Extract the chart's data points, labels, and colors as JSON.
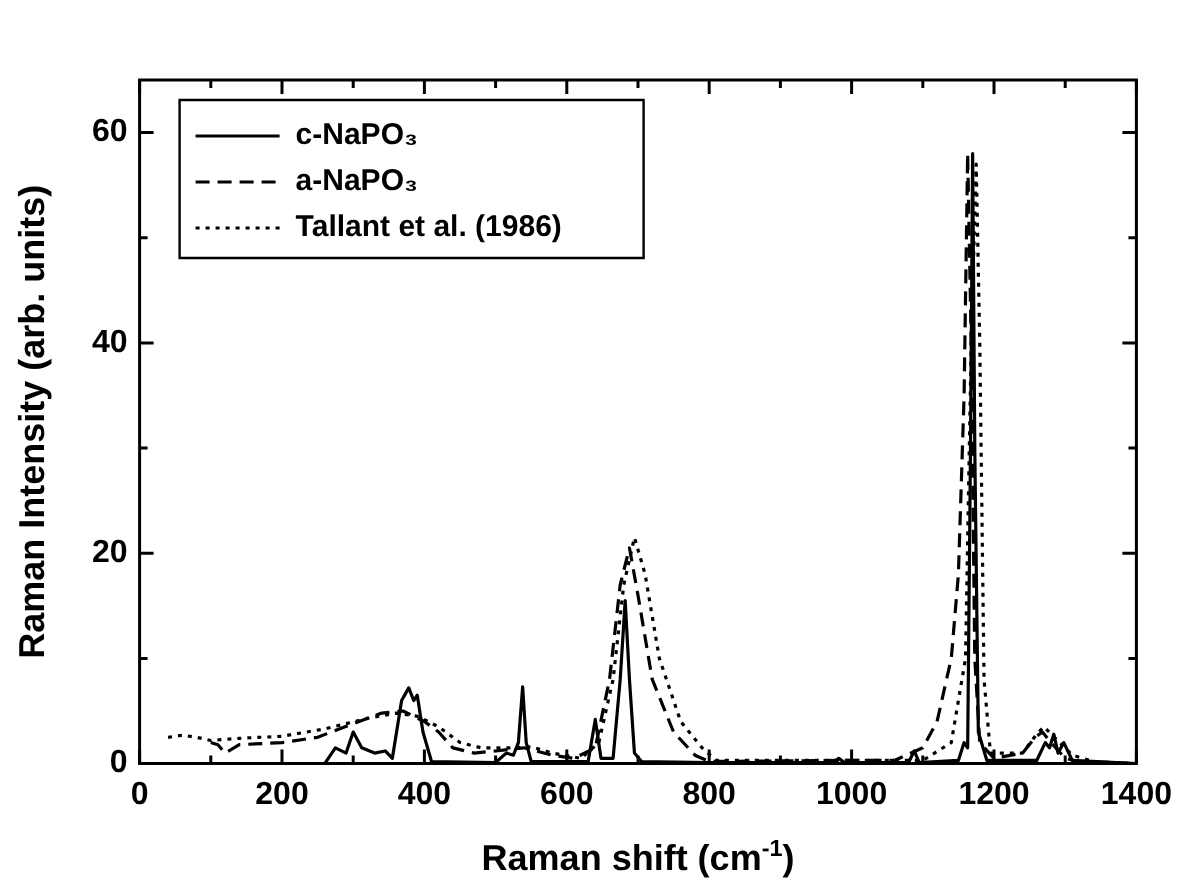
{
  "chart_data": {
    "type": "line",
    "xlabel": "Raman shift (cm$^{-1}$)",
    "ylabel": "Raman Intensity (arb. units)",
    "xlim": [
      0,
      1400
    ],
    "ylim": [
      0,
      65
    ],
    "xticks": [
      0,
      {
        "value": 100,
        "label": null
      },
      200,
      {
        "value": 300,
        "label": null
      },
      400,
      {
        "value": 500,
        "label": null
      },
      600,
      {
        "value": 700,
        "label": null
      },
      800,
      {
        "value": 900,
        "label": null
      },
      1000,
      {
        "value": 1100,
        "label": null
      },
      1200,
      {
        "value": 1300,
        "label": null
      },
      1400
    ],
    "yticks": [
      0,
      {
        "value": 10,
        "label": null
      },
      20,
      {
        "value": 30,
        "label": null
      },
      40,
      {
        "value": 50,
        "label": null
      },
      60
    ],
    "grid": false,
    "legend": "top left",
    "marker": "none",
    "series": [
      {
        "name": "c-NaPO₃",
        "color": "#000000",
        "line_style": "solid",
        "x": [
          150,
          260,
          275,
          290,
          300,
          312,
          330,
          345,
          355,
          368,
          378,
          385,
          390,
          398,
          410,
          500,
          515,
          525,
          532,
          538,
          543,
          550,
          630,
          640,
          648,
          665,
          675,
          682,
          688,
          695,
          705,
          800,
          975,
          982,
          990,
          1080,
          1088,
          1095,
          1150,
          1158,
          1163,
          1167,
          1170,
          1173,
          1178,
          1190,
          1260,
          1272,
          1278,
          1284,
          1290,
          1298,
          1310,
          1400
        ],
        "values": [
          0,
          0,
          1.5,
          1,
          3,
          1.5,
          1,
          1.2,
          0.5,
          6,
          7.2,
          6,
          6.5,
          3,
          0.2,
          0.1,
          1,
          0.8,
          2,
          7.3,
          2,
          0.2,
          0.2,
          4.2,
          0.5,
          0.5,
          8,
          15.5,
          8,
          1,
          0.2,
          0.1,
          0.1,
          0.5,
          0.1,
          0.1,
          1.2,
          0.1,
          0.3,
          2,
          1.5,
          30,
          58,
          30,
          3,
          0.3,
          0.3,
          2,
          1.5,
          2.8,
          1,
          2,
          0.3,
          0
        ]
      },
      {
        "name": "a-NaPO₃",
        "color": "#000000",
        "line_style": "dashed",
        "x": [
          100,
          110,
          120,
          140,
          200,
          250,
          300,
          340,
          370,
          400,
          420,
          440,
          470,
          500,
          540,
          580,
          610,
          640,
          660,
          675,
          688,
          700,
          720,
          750,
          780,
          800,
          980,
          1060,
          1100,
          1120,
          1140,
          1150,
          1158,
          1163,
          1168,
          1173,
          1180,
          1200,
          1240,
          1258,
          1268,
          1280,
          1300,
          1320,
          1400
        ],
        "values": [
          2,
          1.8,
          1,
          1.8,
          2,
          2.5,
          3.8,
          4.8,
          5,
          4,
          3,
          1.5,
          1,
          1.2,
          1.5,
          0.8,
          0.5,
          1.5,
          8,
          17,
          20.5,
          16,
          8,
          3,
          0.8,
          0.2,
          0.3,
          0.3,
          1.5,
          4,
          10,
          18,
          35,
          58,
          40,
          10,
          2,
          0.5,
          1,
          2.5,
          3,
          2,
          0.5,
          0.2,
          0
        ]
      },
      {
        "name": "Tallant et al. (1986)",
        "color": "#000000",
        "line_style": "dotted",
        "x": [
          40,
          60,
          80,
          100,
          140,
          200,
          260,
          320,
          360,
          390,
          420,
          450,
          480,
          520,
          550,
          580,
          620,
          645,
          665,
          680,
          695,
          710,
          730,
          760,
          790,
          810,
          1100,
          1140,
          1160,
          1168,
          1175,
          1180,
          1186,
          1195,
          1240,
          1260,
          1270,
          1285,
          1310,
          1340,
          1400
        ],
        "values": [
          2.5,
          2.7,
          2.5,
          2.2,
          2.4,
          2.6,
          3.3,
          4.3,
          4.8,
          4.5,
          3.5,
          2,
          1.5,
          1.5,
          1.6,
          1,
          0.5,
          2,
          8,
          17,
          21.5,
          18,
          10,
          4,
          1.5,
          0.3,
          0.3,
          2,
          10,
          40,
          57,
          40,
          8,
          1,
          1,
          2.8,
          3.5,
          2.5,
          0.8,
          0.2,
          0
        ]
      }
    ]
  }
}
